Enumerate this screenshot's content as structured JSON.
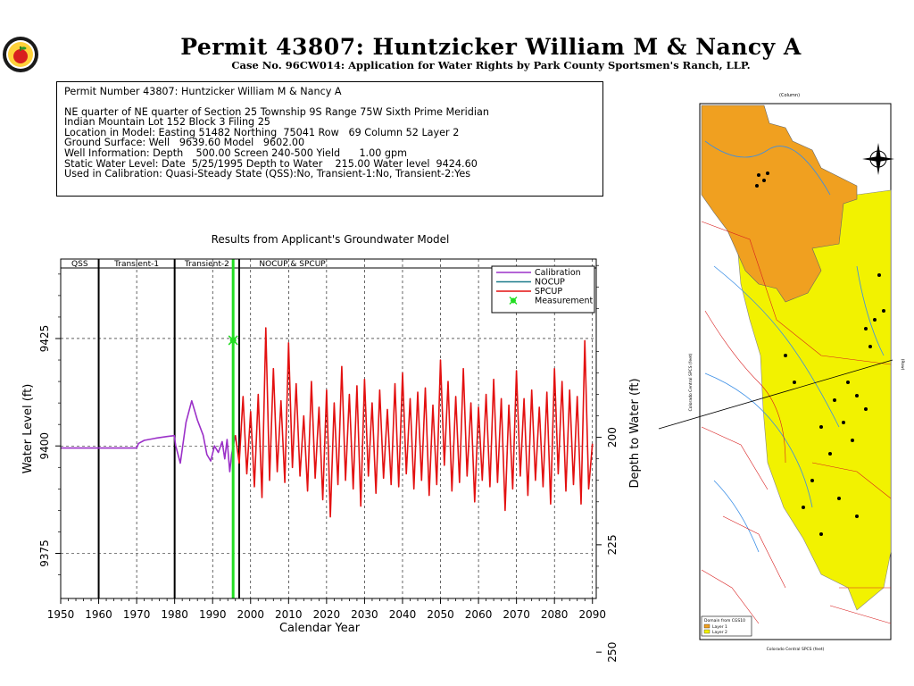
{
  "header": {
    "title": "Permit 43807:  Huntzicker William M & Nancy A",
    "subtitle": "Case No. 96CW014: Application for Water Rights by Park County Sportsmen's Ranch, LLP."
  },
  "info_box": {
    "line1": "Permit Number 43807: Huntzicker William M & Nancy A",
    "line2": "NE quarter of NE quarter of Section 25 Township 9S Range 75W Sixth Prime Meridian",
    "line3": "Indian Mountain Lot 152 Block 3 Filing 25",
    "line4": "Location in Model: Easting 51482 Northing  75041 Row   69 Column 52 Layer 2",
    "line5": "Ground Surface: Well   9639.60 Model   9602.00",
    "line6": "Well Information: Depth    500.00 Screen 240-500 Yield      1.00 gpm",
    "line7": "Static Water Level: Date  5/25/1995 Depth to Water    215.00 Water level  9424.60",
    "line8": "Used in Calibration: Quasi-Steady State (QSS):No, Transient-1:No, Transient-2:Yes"
  },
  "colors": {
    "calibration": "#9b30c8",
    "nocup": "#1a7a8a",
    "spcup": "#e31010",
    "measurement": "#22dd22",
    "map_layer1": "#f0a020",
    "map_layer2": "#f2f200"
  },
  "chart_data": {
    "type": "line",
    "title": "Results from Applicant's Groundwater Model",
    "xlabel": "Calendar Year",
    "ylabel": "Water Level (ft)",
    "y2label": "Depth to Water (ft)",
    "xlim": [
      1950,
      2091
    ],
    "ylim": [
      9364.5,
      9443.5
    ],
    "xticks": [
      "1950",
      "1960",
      "1970",
      "1980",
      "1990",
      "2000",
      "2010",
      "2020",
      "2030",
      "2040",
      "2050",
      "2060",
      "2070",
      "2080",
      "2090"
    ],
    "yticks": [
      "9375",
      "9400",
      "9425"
    ],
    "y2ticks": [
      "200",
      "225",
      "250"
    ],
    "grid": "dashed horizontal at 9375, 9400, 9425; dashed vertical every 10 years",
    "periods": [
      {
        "label": "QSS",
        "start": 1950,
        "end": 1960
      },
      {
        "label": "Transient-1",
        "start": 1960,
        "end": 1980
      },
      {
        "label": "Transient-2",
        "start": 1980,
        "end": 1997
      },
      {
        "label": "NOCUP  &  SPCUP",
        "start": 1997,
        "end": 2091
      }
    ],
    "legend_position": "top-right",
    "series": [
      {
        "name": "Calibration",
        "x": [
          1950,
          1970,
          1970.5,
          1972,
          1975,
          1978,
          1979.9,
          1980.3,
          1981.5,
          1983,
          1984.5,
          1986,
          1987.5,
          1988.5,
          1989.5,
          1990.5,
          1991.5,
          1992.5,
          1993.2,
          1993.8,
          1994.5,
          1995,
          1996
        ],
        "y": [
          9399.5,
          9399.5,
          9400.6,
          9401.3,
          9401.8,
          9402.2,
          9402.4,
          9400.0,
          9396.0,
          9405.5,
          9410.5,
          9406.0,
          9402.5,
          9398.0,
          9396.5,
          9400.0,
          9398.5,
          9401.0,
          9397.0,
          9401.5,
          9394.0,
          9398.0,
          9402.5
        ]
      },
      {
        "name": "NOCUP",
        "x": [
          1996,
          2091
        ],
        "y": [
          9402.5,
          9402.5
        ]
      },
      {
        "name": "SPCUP",
        "x": [
          1996,
          1997,
          1998,
          1999,
          2000,
          2001,
          2002,
          2003,
          2004,
          2005,
          2006,
          2007,
          2008,
          2009,
          2010,
          2011,
          2012,
          2013,
          2014,
          2015,
          2016,
          2017,
          2018,
          2019,
          2020,
          2021,
          2022,
          2023,
          2024,
          2025,
          2026,
          2027,
          2028,
          2029,
          2030,
          2031,
          2032,
          2033,
          2034,
          2035,
          2036,
          2037,
          2038,
          2039,
          2040,
          2041,
          2042,
          2043,
          2044,
          2045,
          2046,
          2047,
          2048,
          2049,
          2050,
          2051,
          2052,
          2053,
          2054,
          2055,
          2056,
          2057,
          2058,
          2059,
          2060,
          2061,
          2062,
          2063,
          2064,
          2065,
          2066,
          2067,
          2068,
          2069,
          2070,
          2071,
          2072,
          2073,
          2074,
          2075,
          2076,
          2077,
          2078,
          2079,
          2080,
          2081,
          2082,
          2083,
          2084,
          2085,
          2086,
          2087,
          2088,
          2089,
          2090
        ],
        "y": [
          9402.5,
          9396.0,
          9411.5,
          9393.5,
          9408.0,
          9390.5,
          9412.0,
          9388.0,
          9427.5,
          9392.0,
          9418.0,
          9394.0,
          9410.5,
          9391.5,
          9424.0,
          9395.0,
          9414.5,
          9393.0,
          9407.0,
          9389.5,
          9415.0,
          9392.5,
          9409.0,
          9387.5,
          9413.0,
          9383.5,
          9410.0,
          9391.0,
          9418.5,
          9392.0,
          9412.0,
          9390.0,
          9414.0,
          9386.0,
          9415.5,
          9393.0,
          9410.0,
          9389.0,
          9413.0,
          9392.5,
          9408.5,
          9391.0,
          9414.5,
          9390.5,
          9417.0,
          9393.5,
          9411.0,
          9390.0,
          9412.5,
          9392.0,
          9413.5,
          9388.5,
          9409.5,
          9391.0,
          9420.0,
          9395.5,
          9415.0,
          9389.5,
          9411.5,
          9391.5,
          9418.0,
          9393.0,
          9410.0,
          9387.0,
          9409.0,
          9392.0,
          9412.0,
          9390.5,
          9415.5,
          9391.5,
          9411.0,
          9385.0,
          9409.5,
          9390.0,
          9417.5,
          9393.0,
          9411.0,
          9388.5,
          9413.0,
          9392.0,
          9409.0,
          9390.5,
          9412.5,
          9386.5,
          9418.0,
          9393.5,
          9415.0,
          9389.5,
          9413.0,
          9391.0,
          9411.5,
          9386.5,
          9424.5,
          9390.0,
          9400.5
        ]
      },
      {
        "name": "Measurement",
        "x": [
          1995.4
        ],
        "y": [
          9424.6
        ]
      }
    ]
  },
  "map": {
    "top_label": "(Column)",
    "left_label": "Colorado Central SPCS (feet)",
    "right_label": "(Row)",
    "bottom_label": "Colorado Central SPCS (feet)",
    "legend_title": "Domain from CGS10",
    "legend_items": [
      "Layer 1",
      "Layer 2"
    ]
  }
}
